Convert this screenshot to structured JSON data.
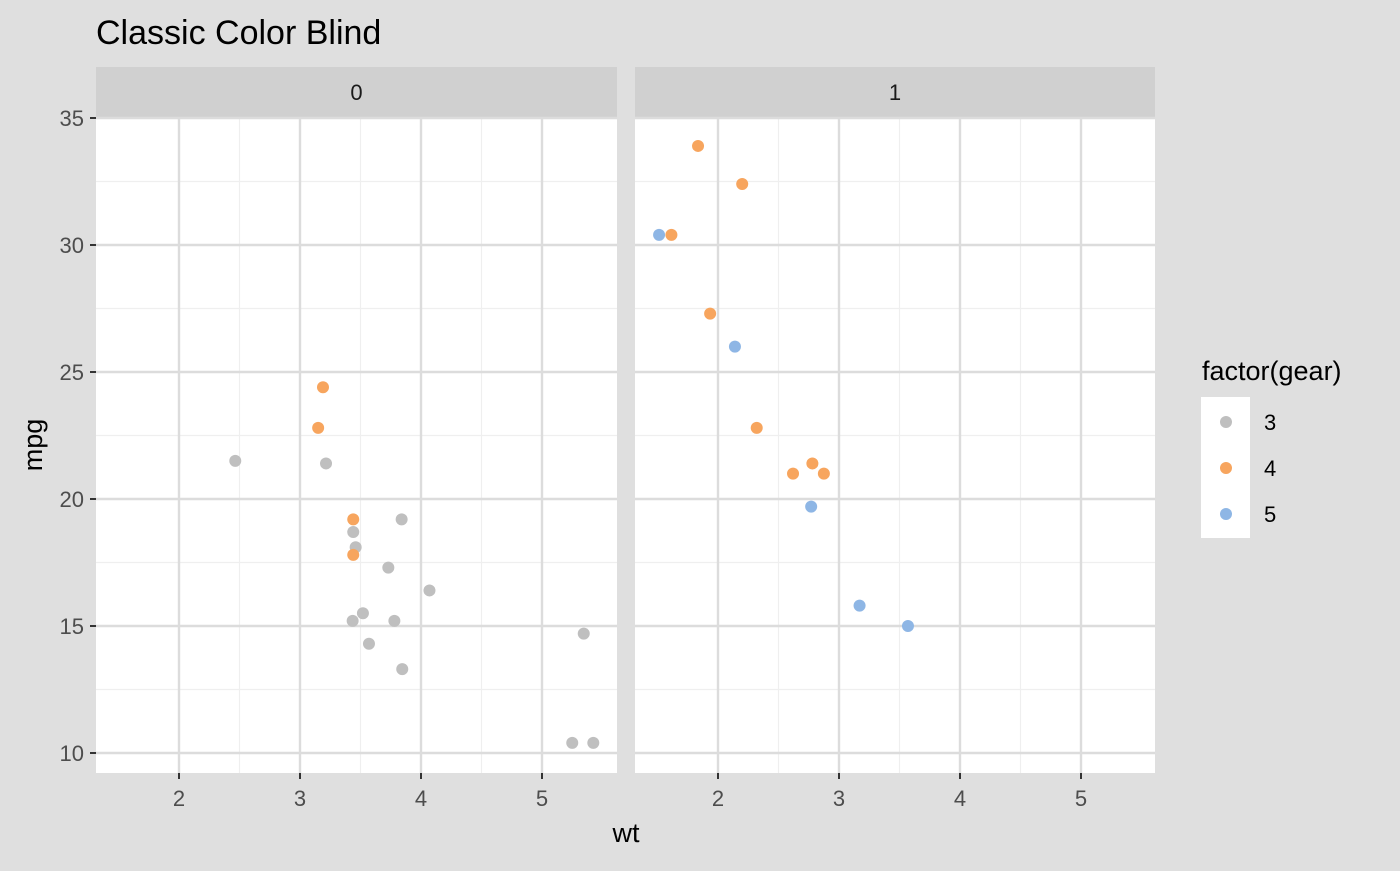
{
  "chart_data": {
    "type": "scatter",
    "title": "Classic Color Blind",
    "xlabel": "wt",
    "ylabel": "mpg",
    "xlim": [
      1.3,
      5.6
    ],
    "ylim": [
      9.4,
      35.4
    ],
    "x_ticks": [
      2,
      3,
      4,
      5
    ],
    "y_ticks": [
      10,
      15,
      20,
      25,
      30,
      35
    ],
    "grid": true,
    "facet_labels": [
      "0",
      "1"
    ],
    "legend": {
      "title": "factor(gear)",
      "position": "right",
      "entries": [
        {
          "label": "3",
          "color": "#BFBFBF"
        },
        {
          "label": "4",
          "color": "#F7A55E"
        },
        {
          "label": "5",
          "color": "#8EB6E5"
        }
      ]
    },
    "colors": {
      "background": "#DFDFDF",
      "panel": "#FFFFFF",
      "strip": "#D0D0D0",
      "grid": "#DCDCDC"
    },
    "panels": [
      {
        "facet": "0",
        "series": [
          {
            "name": "3",
            "points": [
              [
                2.465,
                21.5
              ],
              [
                3.215,
                21.4
              ],
              [
                3.44,
                18.7
              ],
              [
                3.46,
                18.1
              ],
              [
                3.57,
                14.3
              ],
              [
                3.73,
                17.3
              ],
              [
                3.78,
                15.2
              ],
              [
                3.84,
                19.2
              ],
              [
                3.845,
                13.3
              ],
              [
                4.07,
                16.4
              ],
              [
                3.52,
                15.5
              ],
              [
                3.435,
                15.2
              ],
              [
                5.25,
                10.4
              ],
              [
                5.424,
                10.4
              ],
              [
                5.345,
                14.7
              ]
            ]
          },
          {
            "name": "4",
            "points": [
              [
                3.19,
                24.4
              ],
              [
                3.15,
                22.8
              ],
              [
                3.44,
                19.2
              ],
              [
                3.44,
                17.8
              ]
            ]
          },
          {
            "name": "5",
            "points": []
          }
        ]
      },
      {
        "facet": "1",
        "series": [
          {
            "name": "3",
            "points": []
          },
          {
            "name": "4",
            "points": [
              [
                1.835,
                33.9
              ],
              [
                2.2,
                32.4
              ],
              [
                1.615,
                30.4
              ],
              [
                1.935,
                27.3
              ],
              [
                2.32,
                22.8
              ],
              [
                2.62,
                21.0
              ],
              [
                2.875,
                21.0
              ],
              [
                2.78,
                21.4
              ]
            ]
          },
          {
            "name": "5",
            "points": [
              [
                1.513,
                30.4
              ],
              [
                2.14,
                26.0
              ],
              [
                2.77,
                19.7
              ],
              [
                3.17,
                15.8
              ],
              [
                3.57,
                15.0
              ]
            ]
          }
        ]
      }
    ]
  }
}
